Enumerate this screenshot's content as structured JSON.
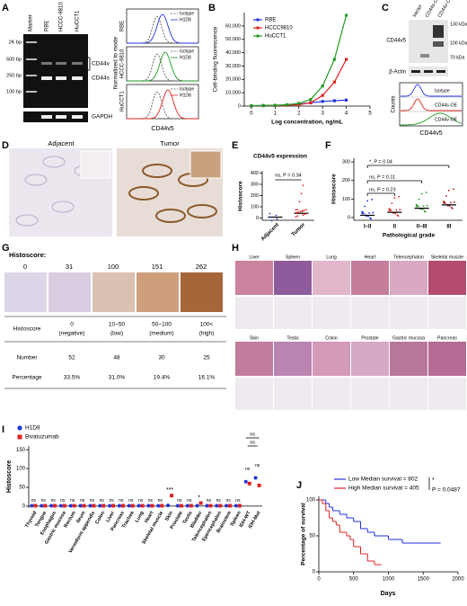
{
  "panel_labels": [
    "A",
    "B",
    "C",
    "D",
    "E",
    "F",
    "G",
    "H",
    "I",
    "J"
  ],
  "panel_a": {
    "lanes": [
      "Marker",
      "RBE",
      "HCCC-9810",
      "HuCCT1"
    ],
    "ladder": [
      "2K bp",
      "500 bp",
      "250 bp",
      "100 bp"
    ],
    "bands": [
      "CD44v",
      "CD44s",
      "GAPDH"
    ],
    "flow_rows": [
      "RBE",
      "HCCC-9810",
      "HuCCT1"
    ],
    "legend": [
      "Isotype",
      "H1D8"
    ],
    "ylabel": "Normalized to mode",
    "xlabel": "CD44v5"
  },
  "panel_b": {
    "type": "line",
    "ylabel": "Cell-binding fluorescence",
    "xlabel": "Log concentration, ng/mL",
    "x": [
      0,
      0.5,
      1,
      1.5,
      2,
      2.5,
      3,
      3.5,
      4
    ],
    "series": [
      {
        "name": "RBE",
        "color": "#2233dd",
        "values": [
          300,
          400,
          600,
          800,
          1500,
          2500,
          3500,
          4000,
          4500
        ]
      },
      {
        "name": "HCCC9810",
        "color": "#e02020",
        "values": [
          200,
          300,
          400,
          600,
          1000,
          2500,
          8000,
          18000,
          35000
        ]
      },
      {
        "name": "HuCCT1",
        "color": "#229922",
        "values": [
          300,
          400,
          600,
          1000,
          2000,
          5000,
          15000,
          35000,
          68000
        ]
      }
    ],
    "xlim": [
      -0.3,
      5
    ],
    "xticks": [
      0,
      1,
      2,
      3,
      4,
      5
    ],
    "ylim": [
      0,
      70000
    ],
    "yticks": [
      0,
      {
        "value": 10000,
        "label": "10,000"
      },
      {
        "value": 20000,
        "label": "20,000"
      },
      {
        "value": 30000,
        "label": "30,000"
      },
      {
        "value": 40000,
        "label": "40,000"
      },
      {
        "value": 50000,
        "label": "50,000"
      },
      {
        "value": 60000,
        "label": "60,000"
      }
    ]
  },
  "panel_c": {
    "lanes": [
      "Vector",
      "CD44s-OE",
      "CD44v-OE"
    ],
    "blot_label": "CD44v5",
    "markers": [
      "130 kDa",
      "100 kDa",
      "70 kDa"
    ],
    "loading": "β-Actin",
    "flow_rows": [
      "Isotype",
      "CD44s-OE",
      "CD44v-OE"
    ],
    "ylabel": "Counts",
    "xlabel": "CD44v5"
  },
  "panel_d": {
    "titles": [
      "Adjacent",
      "Tumor"
    ]
  },
  "panel_e": {
    "type": "mean-dot",
    "title": "CD44v5 expression",
    "ylabel": "Histoscore",
    "categories": [
      "Adjacent",
      "Tumor"
    ],
    "values": [
      8,
      42
    ],
    "ylim": [
      -20,
      420
    ],
    "yticks": [
      0,
      100,
      200,
      300,
      400
    ],
    "annotation": "ns, P = 0.34"
  },
  "panel_f": {
    "type": "mean-dot",
    "ylabel": "Histoscore",
    "xlabel": "Pathological grade",
    "categories": [
      "I–II",
      "II",
      "II–III",
      "III"
    ],
    "values": [
      12,
      28,
      50,
      68
    ],
    "ylim": [
      -15,
      320
    ],
    "yticks": [
      0,
      100,
      200,
      300
    ],
    "annotations": [
      "ns, P = 0.23",
      "ns, P = 0.11",
      "*, P = 0.04"
    ]
  },
  "panel_g": {
    "header": "Histoscore:",
    "scores": [
      0,
      31,
      100,
      151,
      262
    ],
    "row_labels": [
      "Histoscore",
      "Number",
      "Percentage"
    ],
    "ranges": [
      [
        "0",
        "(negative)"
      ],
      [
        "10~50",
        "(low)"
      ],
      [
        "50~100",
        "(medium)"
      ],
      [
        "100<",
        "(high)"
      ]
    ],
    "numbers": [
      52,
      48,
      30,
      25
    ],
    "percentages": [
      "33.5%",
      "31.0%",
      "19.4%",
      "16.1%"
    ]
  },
  "panel_h": {
    "tissues_top": [
      "Liver",
      "Spleen",
      "Lung",
      "Heart",
      "Telencephalon",
      "Skeletal muscle"
    ],
    "tissues_bottom": [
      "Skin",
      "Testis",
      "Colon",
      "Prostate",
      "Gastric mucosa",
      "Pancreas"
    ]
  },
  "panel_i": {
    "type": "dot",
    "ylabel": "Histoscore",
    "categories": [
      "Thyroid",
      "Tongue",
      "Esophagus",
      "Gastric mucosa",
      "Rectum",
      "Ileum",
      "Vermiform appendix",
      "Colon",
      "Liver",
      "Pancreas",
      "Trachea",
      "Lung",
      "Heart",
      "Skeletal muscle",
      "Skin",
      "Prostate",
      "Testis",
      "Bladder",
      "Telencephalon",
      "Epencephalon",
      "Brainstem",
      "Spleen",
      "IDH-WT",
      "IDH-Mut"
    ],
    "series": [
      {
        "name": "H1D8",
        "color": "#2233dd",
        "values": [
          1,
          1,
          1,
          1,
          1,
          1,
          1,
          1,
          1,
          1,
          1,
          1,
          1,
          1,
          2,
          1,
          1,
          1,
          1,
          1,
          1,
          1,
          65,
          75
        ]
      },
      {
        "name": "Bivatuzumab",
        "color": "#e02020",
        "values": [
          1,
          1,
          1,
          1,
          1,
          1,
          1,
          1,
          1,
          1,
          1,
          1,
          1,
          1,
          28,
          1,
          1,
          8,
          1,
          1,
          1,
          1,
          60,
          55
        ]
      }
    ],
    "significance": [
      "ns",
      "ns",
      "ns",
      "ns",
      "ns",
      "ns",
      "ns",
      "ns",
      "ns",
      "ns",
      "ns",
      "ns",
      "ns",
      "ns",
      "***",
      "ns",
      "ns",
      "*",
      "ns",
      "ns",
      "ns",
      "ns",
      "ns",
      "ns"
    ],
    "bracket_labels": [
      "ns",
      "ns"
    ],
    "ylim": [
      -5,
      160
    ],
    "yticks": [
      0,
      50,
      100,
      150
    ]
  },
  "panel_j": {
    "type": "km",
    "ylabel": "Percentage of survival",
    "xlabel": "Days",
    "series": [
      {
        "name": "Low Median survival = 802",
        "color": "#2233dd",
        "x": [
          0,
          100,
          150,
          200,
          300,
          400,
          500,
          600,
          700,
          800,
          1000,
          1200,
          1750
        ],
        "values": [
          100,
          95,
          90,
          85,
          80,
          75,
          70,
          60,
          55,
          50,
          45,
          40,
          40
        ]
      },
      {
        "name": "High Median survival = 405",
        "color": "#e02020",
        "x": [
          0,
          50,
          100,
          150,
          200,
          250,
          300,
          400,
          450,
          500,
          600,
          700,
          800,
          900
        ],
        "values": [
          100,
          95,
          85,
          75,
          70,
          65,
          55,
          50,
          45,
          35,
          25,
          15,
          10,
          10
        ]
      }
    ],
    "star": "*",
    "p_value": "P = 0.0487",
    "xlim": [
      0,
      2000
    ],
    "xticks": [
      0,
      500,
      1000,
      1500,
      2000
    ],
    "ylim": [
      0,
      105
    ],
    "yticks": [
      0,
      50,
      100
    ]
  }
}
